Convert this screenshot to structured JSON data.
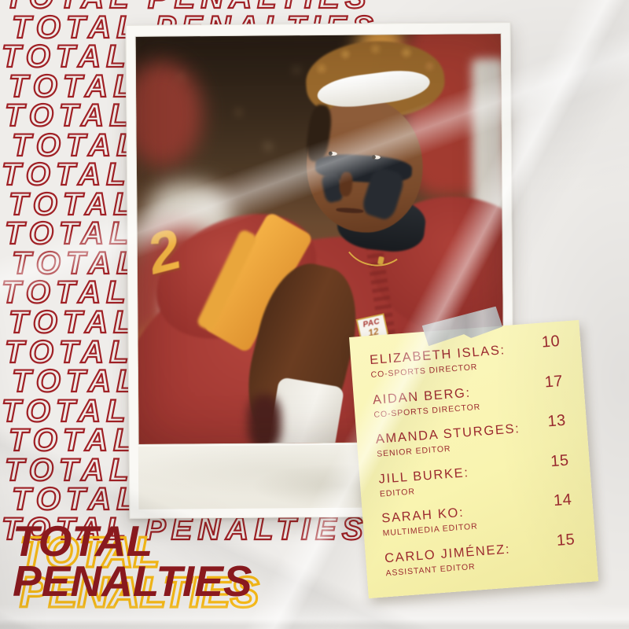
{
  "colors": {
    "paper": "#efedea",
    "pattern-red": "#a02025",
    "maroon": "#8d1a1f",
    "gold": "#f6b917",
    "note-bg": "#f9f4b0",
    "note-text": "#9c2a2f",
    "tape": "#b7babc",
    "cardinal": "#a63c32",
    "jersey-gold": "#f0a93c"
  },
  "background": {
    "pattern": {
      "text": "TOTAL PENALTIES"
    }
  },
  "title": {
    "line1": "TOTAL",
    "line2": "PENALTIES"
  },
  "photo": {
    "jersey_number": "2",
    "pac12_logo": {
      "line1": "PAC",
      "line2": "12"
    }
  },
  "note": {
    "entries": [
      {
        "name": "ELIZABETH ISLAS:",
        "role": "CO-SPORTS DIRECTOR",
        "value": "10"
      },
      {
        "name": "AIDAN BERG:",
        "role": "CO-SPORTS DIRECTOR",
        "value": "17"
      },
      {
        "name": "AMANDA STURGES:",
        "role": "SENIOR EDITOR",
        "value": "13"
      },
      {
        "name": "JILL BURKE:",
        "role": "EDITOR",
        "value": "15"
      },
      {
        "name": "SARAH KO:",
        "role": "MULTIMEDIA EDITOR",
        "value": "14"
      },
      {
        "name": "CARLO JIMÉNEZ:",
        "role": "ASSISTANT EDITOR",
        "value": "15"
      }
    ]
  }
}
